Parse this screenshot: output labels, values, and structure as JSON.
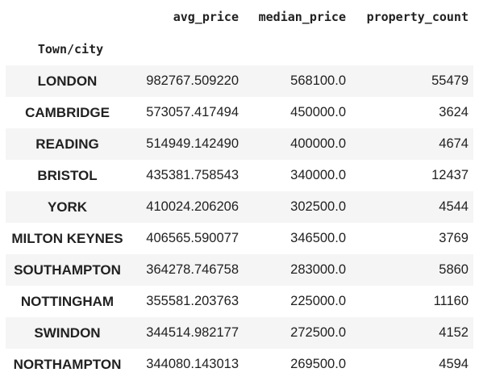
{
  "table": {
    "columns": [
      "avg_price",
      "median_price",
      "property_count"
    ],
    "index_name": "Town/city",
    "rows": [
      {
        "town": "LONDON",
        "avg_price": "982767.509220",
        "median_price": "568100.0",
        "property_count": "55479"
      },
      {
        "town": "CAMBRIDGE",
        "avg_price": "573057.417494",
        "median_price": "450000.0",
        "property_count": "3624"
      },
      {
        "town": "READING",
        "avg_price": "514949.142490",
        "median_price": "400000.0",
        "property_count": "4674"
      },
      {
        "town": "BRISTOL",
        "avg_price": "435381.758543",
        "median_price": "340000.0",
        "property_count": "12437"
      },
      {
        "town": "YORK",
        "avg_price": "410024.206206",
        "median_price": "302500.0",
        "property_count": "4544"
      },
      {
        "town": "MILTON KEYNES",
        "avg_price": "406565.590077",
        "median_price": "346500.0",
        "property_count": "3769"
      },
      {
        "town": "SOUTHAMPTON",
        "avg_price": "364278.746758",
        "median_price": "283000.0",
        "property_count": "5860"
      },
      {
        "town": "NOTTINGHAM",
        "avg_price": "355581.203763",
        "median_price": "225000.0",
        "property_count": "11160"
      },
      {
        "town": "SWINDON",
        "avg_price": "344514.982177",
        "median_price": "272500.0",
        "property_count": "4152"
      },
      {
        "town": "NORTHAMPTON",
        "avg_price": "344080.143013",
        "median_price": "269500.0",
        "property_count": "4594"
      }
    ]
  }
}
